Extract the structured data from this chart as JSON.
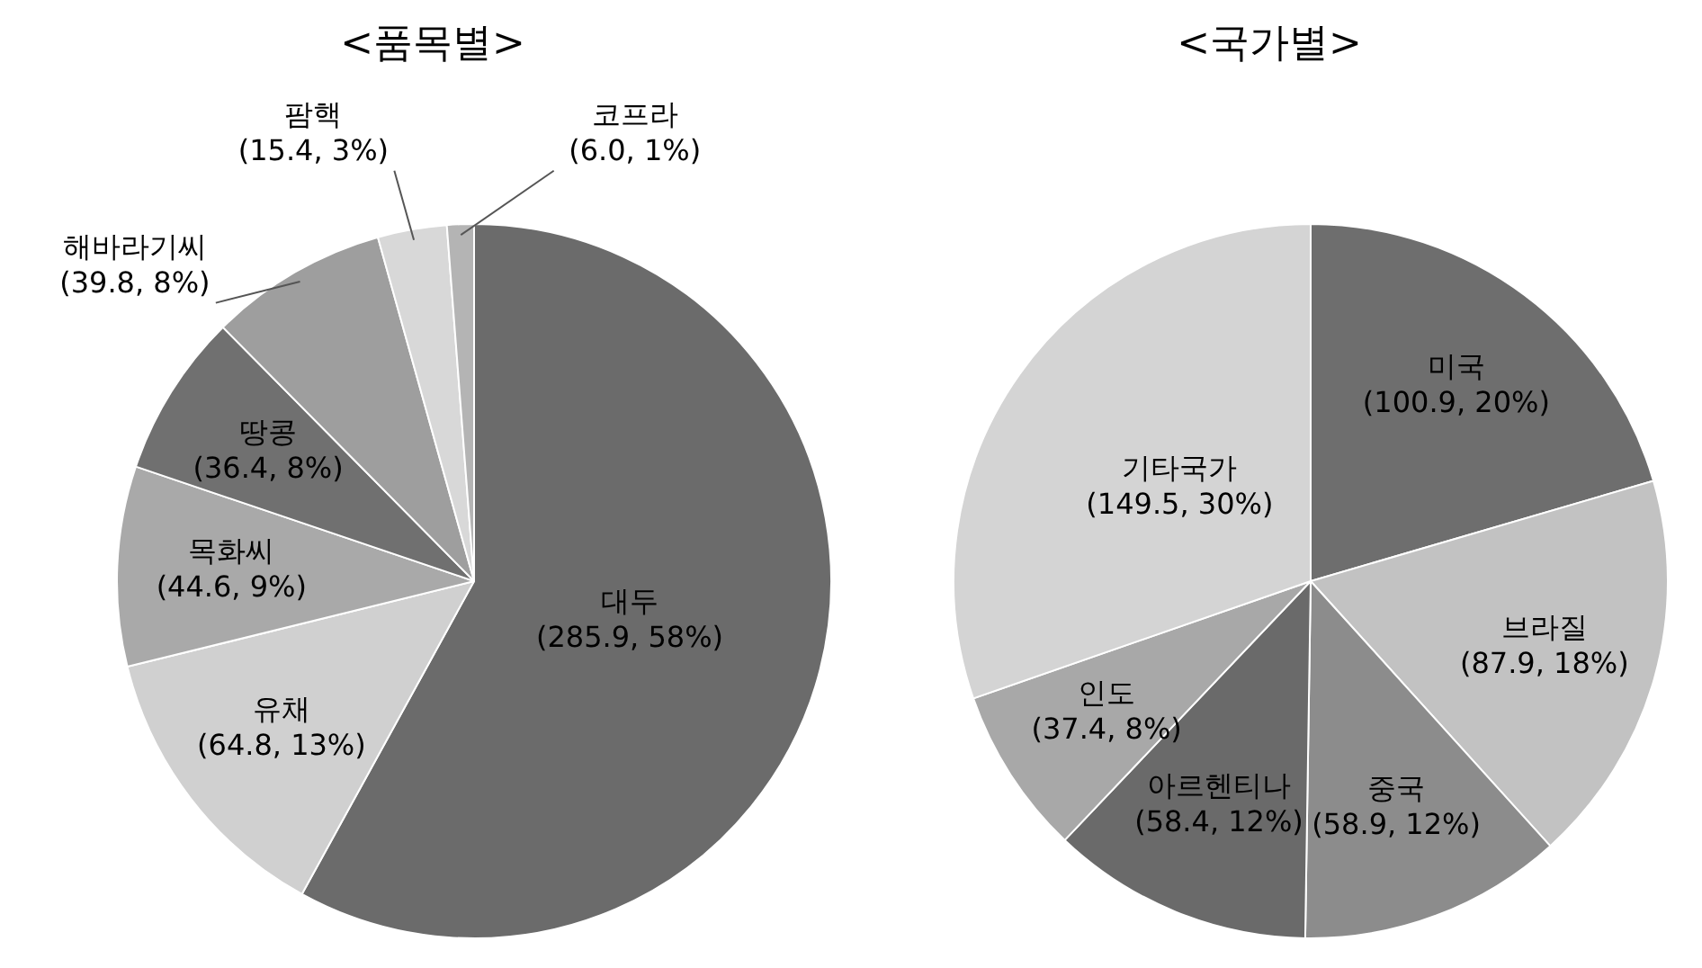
{
  "chart_data": [
    {
      "type": "pie",
      "title": "<품목별>",
      "categories": [
        "대두",
        "유채",
        "목화씨",
        "땅콩",
        "해바라기씨",
        "팜핵",
        "코프라"
      ],
      "values": [
        285.9,
        64.8,
        44.6,
        36.4,
        39.8,
        15.4,
        6.0
      ],
      "colors": [
        "#6b6b6b",
        "#d0d0d0",
        "#a9a9a9",
        "#707070",
        "#9e9e9e",
        "#d8d8d8",
        "#b4b4b4"
      ],
      "value_labels": [
        "(285.9, 58%)",
        "(64.8, 13%)",
        "(44.6, 9%)",
        "(36.4, 8%)",
        "(39.8, 8%)",
        "(15.4, 3%)",
        "(6.0, 1%)"
      ],
      "legend": false
    },
    {
      "type": "pie",
      "title": "<국가별>",
      "categories": [
        "미국",
        "브라질",
        "중국",
        "아르헨티나",
        "인도",
        "기타국가"
      ],
      "values": [
        100.9,
        87.9,
        58.9,
        58.4,
        37.4,
        149.5
      ],
      "colors": [
        "#6e6e6e",
        "#c2c2c2",
        "#8c8c8c",
        "#6a6a6a",
        "#a8a8a8",
        "#d4d4d4"
      ],
      "value_labels": [
        "(100.9, 20%)",
        "(87.9, 18%)",
        "(58.9, 12%)",
        "(58.4, 12%)",
        "(37.4, 8%)",
        "(149.5, 30%)"
      ],
      "legend": false
    }
  ]
}
